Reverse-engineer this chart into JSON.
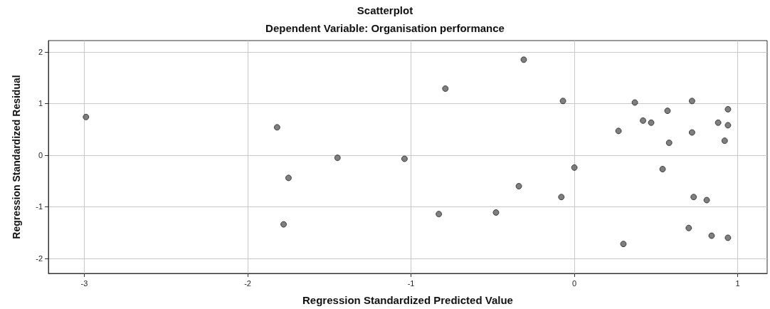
{
  "chart_data": {
    "type": "scatter",
    "title": "Scatterplot",
    "subtitle": "Dependent Variable: Organisation performance",
    "xlabel": "Regression Standardized Predicted Value",
    "ylabel": "Regression Standardized Residual",
    "xlim": [
      -3.22,
      1.18
    ],
    "xticks": [
      -3,
      -2,
      -1,
      0,
      1
    ],
    "ylim": [
      -2.29,
      2.22
    ],
    "yticks": [
      -2,
      -1,
      0,
      1,
      2
    ],
    "grid": true,
    "marker": "circle",
    "series": [
      {
        "color": "#5f5f5f",
        "x": [
          -2.99,
          -1.82,
          -1.75,
          -1.78,
          -1.45,
          -1.04,
          -0.83,
          -0.79,
          -0.48,
          -0.34,
          -0.31,
          -0.07,
          -0.08,
          0.0,
          0.27,
          0.3,
          0.37,
          0.42,
          0.47,
          0.54,
          0.57,
          0.58,
          0.7,
          0.72,
          0.72,
          0.73,
          0.81,
          0.88,
          0.84,
          0.94,
          0.94,
          0.92,
          0.94
        ],
        "values": [
          0.74,
          0.54,
          -0.44,
          -1.34,
          -0.05,
          -0.07,
          -1.14,
          1.29,
          -1.11,
          -0.6,
          1.85,
          1.05,
          -0.81,
          -0.24,
          0.47,
          -1.72,
          1.02,
          0.67,
          0.63,
          -0.27,
          0.86,
          0.24,
          -1.41,
          1.05,
          0.44,
          -0.81,
          -0.87,
          0.63,
          -1.56,
          0.89,
          0.58,
          0.28,
          -1.6
        ]
      }
    ]
  }
}
